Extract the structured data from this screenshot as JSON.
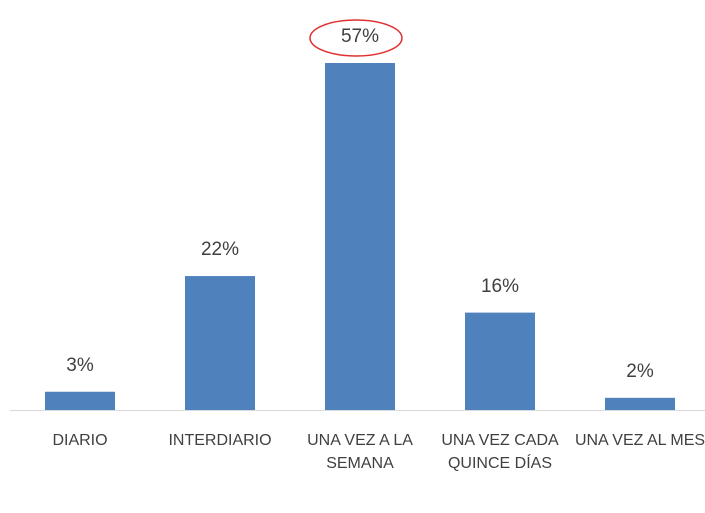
{
  "chart_data": {
    "type": "bar",
    "categories": [
      "DIARIO",
      "INTERDIARIO",
      "UNA VEZ A LA SEMANA",
      "UNA VEZ CADA QUINCE DÍAS",
      "UNA VEZ AL MES"
    ],
    "values": [
      3,
      22,
      57,
      16,
      2
    ],
    "value_labels": [
      "3%",
      "22%",
      "57%",
      "16%",
      "2%"
    ],
    "color": "#4f81bd"
  }
}
